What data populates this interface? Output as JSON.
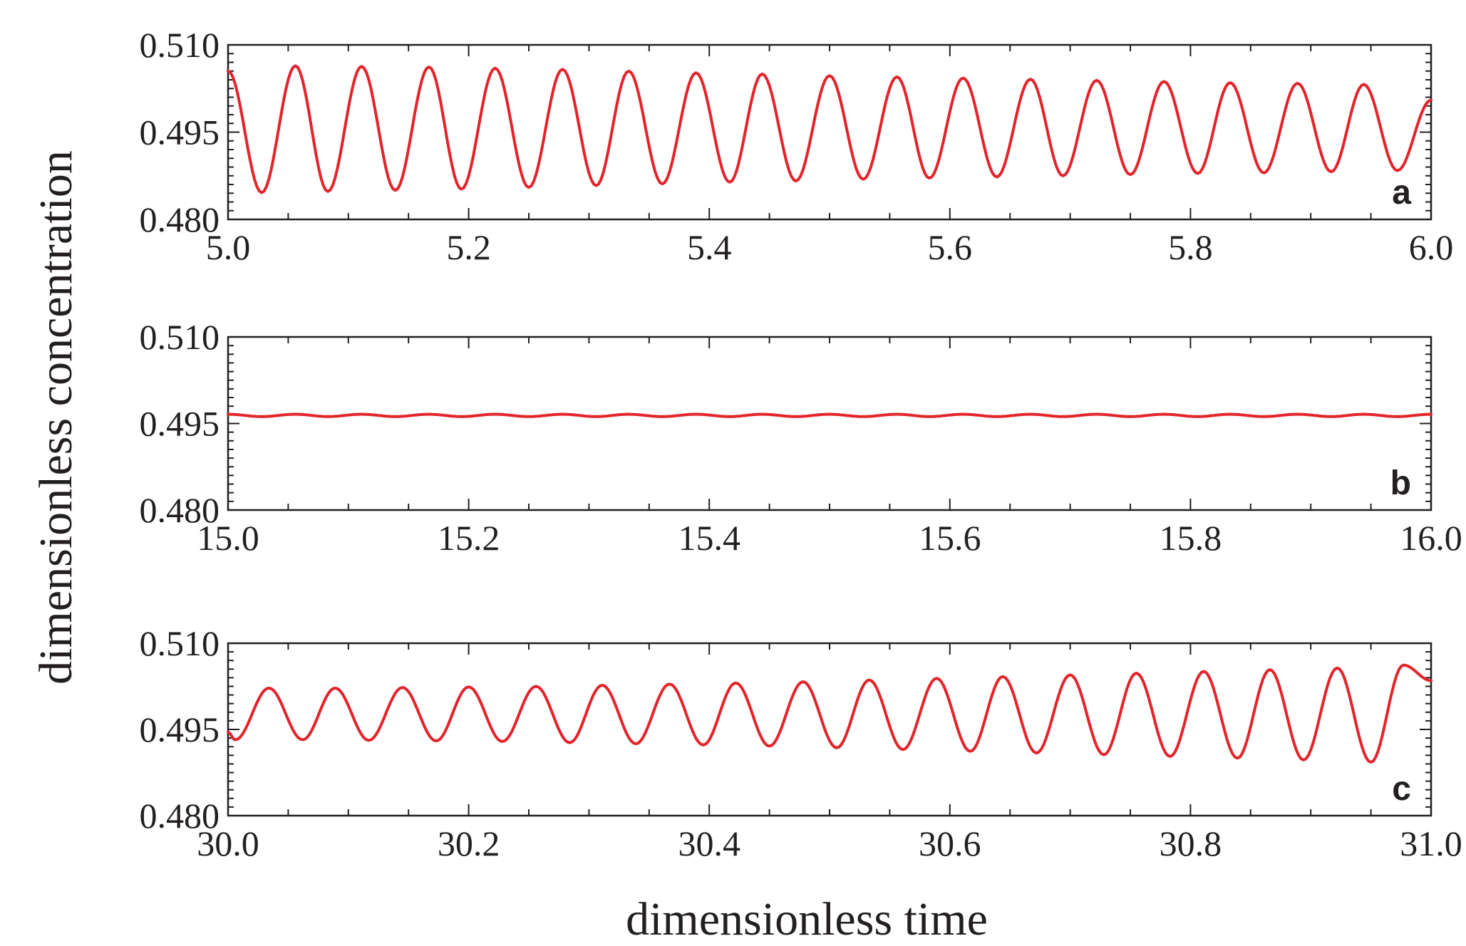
{
  "figure": {
    "ylabel": "dimensionless concentration",
    "xlabel": "dimensionless time"
  },
  "colors": {
    "series": "#e3242b",
    "axes": "#231f20"
  },
  "chart_data": [
    {
      "type": "line",
      "panel_label": "a",
      "xlim": [
        5.0,
        6.0
      ],
      "ylim": [
        0.48,
        0.51
      ],
      "xticks": [
        "5.0",
        "5.2",
        "5.4",
        "5.6",
        "5.8",
        "6.0"
      ],
      "yticks": [
        "0.510",
        "0.495",
        "0.480"
      ],
      "grid": false,
      "series": [
        {
          "x": [
            5.0,
            5.028,
            5.056,
            5.083,
            5.111,
            5.139,
            5.167,
            5.194,
            5.222,
            5.25,
            5.278,
            5.306,
            5.333,
            5.361,
            5.389,
            5.417,
            5.444,
            5.472,
            5.5,
            5.528,
            5.556,
            5.583,
            5.611,
            5.639,
            5.667,
            5.694,
            5.722,
            5.75,
            5.778,
            5.806,
            5.833,
            5.861,
            5.889,
            5.917,
            5.944,
            5.972,
            6.0
          ],
          "y": [
            0.5055,
            0.4846,
            0.5064,
            0.4848,
            0.5063,
            0.485,
            0.5062,
            0.4852,
            0.506,
            0.4855,
            0.5058,
            0.4858,
            0.5055,
            0.4861,
            0.5052,
            0.4864,
            0.505,
            0.4866,
            0.5047,
            0.4869,
            0.5045,
            0.4871,
            0.5043,
            0.4873,
            0.5041,
            0.4875,
            0.5039,
            0.4877,
            0.5037,
            0.4879,
            0.5035,
            0.488,
            0.5034,
            0.4882,
            0.5032,
            0.4884,
            0.5005
          ]
        }
      ]
    },
    {
      "type": "line",
      "panel_label": "b",
      "xlim": [
        15.0,
        16.0
      ],
      "ylim": [
        0.48,
        0.51
      ],
      "xticks": [
        "15.0",
        "15.2",
        "15.4",
        "15.6",
        "15.8",
        "16.0"
      ],
      "yticks": [
        "0.510",
        "0.495",
        "0.480"
      ],
      "grid": false,
      "series": [
        {
          "x": [
            15.0,
            15.028,
            15.056,
            15.083,
            15.111,
            15.139,
            15.167,
            15.194,
            15.222,
            15.25,
            15.278,
            15.306,
            15.333,
            15.361,
            15.389,
            15.417,
            15.444,
            15.472,
            15.5,
            15.528,
            15.556,
            15.583,
            15.611,
            15.639,
            15.667,
            15.694,
            15.722,
            15.75,
            15.778,
            15.806,
            15.833,
            15.861,
            15.889,
            15.917,
            15.944,
            15.972,
            16.0
          ],
          "y": [
            0.4966,
            0.4962,
            0.4966,
            0.4962,
            0.4966,
            0.4962,
            0.4966,
            0.4962,
            0.4966,
            0.4962,
            0.4966,
            0.4962,
            0.4966,
            0.4962,
            0.4966,
            0.4962,
            0.4966,
            0.4962,
            0.4966,
            0.4962,
            0.4966,
            0.4962,
            0.4966,
            0.4962,
            0.4966,
            0.4962,
            0.4966,
            0.4962,
            0.4966,
            0.4962,
            0.4966,
            0.4962,
            0.4966,
            0.4962,
            0.4966,
            0.4962,
            0.4966
          ]
        }
      ]
    },
    {
      "type": "line",
      "panel_label": "c",
      "xlim": [
        30.0,
        31.0
      ],
      "ylim": [
        0.48,
        0.51
      ],
      "xticks": [
        "30.0",
        "30.2",
        "30.4",
        "30.6",
        "30.8",
        "31.0"
      ],
      "yticks": [
        "0.510",
        "0.495",
        "0.480"
      ],
      "grid": false,
      "series": [
        {
          "x": [
            30.0,
            30.006,
            30.034,
            30.062,
            30.089,
            30.117,
            30.145,
            30.173,
            30.2,
            30.228,
            30.256,
            30.284,
            30.311,
            30.339,
            30.367,
            30.395,
            30.422,
            30.45,
            30.478,
            30.506,
            30.533,
            30.561,
            30.589,
            30.617,
            30.644,
            30.672,
            30.7,
            30.728,
            30.755,
            30.783,
            30.811,
            30.839,
            30.866,
            30.894,
            30.922,
            30.95,
            30.977,
            31.0
          ],
          "y": [
            0.4945,
            0.4932,
            0.5022,
            0.4932,
            0.5022,
            0.4931,
            0.5023,
            0.493,
            0.5024,
            0.4929,
            0.5025,
            0.4927,
            0.5027,
            0.4925,
            0.5029,
            0.4923,
            0.5031,
            0.4921,
            0.5033,
            0.4918,
            0.5036,
            0.4915,
            0.5039,
            0.4912,
            0.5042,
            0.4909,
            0.5045,
            0.4906,
            0.5048,
            0.4903,
            0.5051,
            0.49,
            0.5054,
            0.4897,
            0.5057,
            0.4893,
            0.5062,
            0.5035
          ]
        }
      ]
    }
  ]
}
